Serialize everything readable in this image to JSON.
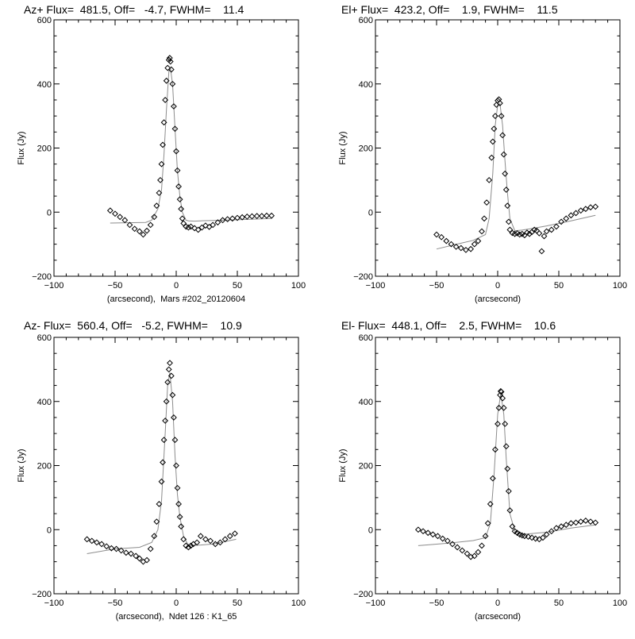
{
  "figure": {
    "background": "#ffffff",
    "ink": "#000000",
    "fit_color": "#8c8c8c"
  },
  "chart_data": [
    {
      "type": "scatter",
      "panel": "top-left",
      "title": "Az+ Flux=  481.5, Off=   -4.7, FWHM=    11.4",
      "xlabel": "(arcsecond),  Mars #202_20120604",
      "ylabel": "Flux (Jy)",
      "xlim": [
        -100,
        100
      ],
      "ylim": [
        -200,
        600
      ],
      "xticks": [
        -100,
        -50,
        0,
        50,
        100
      ],
      "yticks": [
        -200,
        0,
        200,
        400,
        600
      ],
      "grid": false,
      "peak": {
        "center": -4.7,
        "amp": 481.5,
        "fwhm": 11.4
      },
      "series": [
        {
          "name": "data",
          "marker": "diamond",
          "x": [
            -54,
            -50,
            -46,
            -42,
            -38,
            -34,
            -30,
            -27,
            -24,
            -21,
            -18,
            -16,
            -14,
            -13,
            -12,
            -11,
            -10,
            -9,
            -8,
            -7,
            -6,
            -5.3,
            -4.7,
            -4,
            -3,
            -2,
            -1,
            0,
            1,
            2,
            3,
            4,
            5,
            6,
            8,
            10,
            12,
            15,
            18,
            21,
            24,
            27,
            30,
            34,
            38,
            42,
            46,
            50,
            54,
            58,
            62,
            66,
            70,
            74,
            78
          ],
          "y": [
            5,
            -5,
            -15,
            -25,
            -40,
            -52,
            -60,
            -70,
            -58,
            -40,
            -15,
            20,
            60,
            100,
            150,
            210,
            280,
            350,
            410,
            450,
            475,
            481,
            470,
            445,
            400,
            330,
            260,
            190,
            130,
            80,
            40,
            10,
            -20,
            -35,
            -45,
            -48,
            -45,
            -50,
            -55,
            -48,
            -42,
            -46,
            -40,
            -32,
            -25,
            -22,
            -20,
            -18,
            -16,
            -14,
            -13,
            -12,
            -12,
            -11,
            -11
          ]
        },
        {
          "name": "fit",
          "marker": "line",
          "x": [
            -54,
            -40,
            -25,
            -20,
            -15,
            -12,
            -10,
            -8,
            -6,
            -4.7,
            -3,
            -1,
            1,
            3,
            5,
            8,
            10,
            15,
            20,
            30,
            50,
            78
          ],
          "y": [
            -34,
            -33,
            -32,
            -25,
            10,
            70,
            180,
            320,
            440,
            448,
            400,
            260,
            130,
            50,
            0,
            -25,
            -27,
            -28,
            -27,
            -26,
            -24,
            -20
          ]
        }
      ]
    },
    {
      "type": "scatter",
      "panel": "top-right",
      "title": "El+ Flux=  423.2, Off=    1.9, FWHM=    11.5",
      "xlabel": "(arcsecond)",
      "ylabel": "Flux (Jy)",
      "xlim": [
        -100,
        100
      ],
      "ylim": [
        -200,
        600
      ],
      "xticks": [
        -100,
        -50,
        0,
        50,
        100
      ],
      "yticks": [
        -200,
        0,
        200,
        400,
        600
      ],
      "grid": false,
      "peak": {
        "center": 1.9,
        "amp": 423.2,
        "fwhm": 11.5
      },
      "series": [
        {
          "name": "data",
          "marker": "diamond",
          "x": [
            -50,
            -46,
            -42,
            -38,
            -34,
            -30,
            -26,
            -22,
            -19,
            -16,
            -13,
            -11,
            -9,
            -7,
            -5,
            -4,
            -3,
            -2,
            -1,
            0,
            1,
            1.9,
            3,
            4,
            5,
            6,
            7,
            8,
            9,
            10,
            12,
            14,
            16,
            18,
            20,
            22,
            24,
            26,
            28,
            30,
            32,
            34,
            36,
            38,
            40,
            44,
            48,
            52,
            56,
            60,
            64,
            68,
            72,
            76,
            80
          ],
          "y": [
            -70,
            -78,
            -90,
            -100,
            -108,
            -112,
            -118,
            -115,
            -100,
            -90,
            -60,
            -20,
            30,
            100,
            170,
            220,
            260,
            300,
            335,
            348,
            352,
            340,
            300,
            240,
            180,
            120,
            70,
            20,
            -30,
            -55,
            -65,
            -68,
            -66,
            -70,
            -68,
            -72,
            -64,
            -68,
            -62,
            -55,
            -58,
            -66,
            -122,
            -75,
            -60,
            -55,
            -45,
            -30,
            -20,
            -10,
            -3,
            5,
            10,
            15,
            17
          ]
        },
        {
          "name": "fit",
          "marker": "line",
          "x": [
            -50,
            -30,
            -20,
            -10,
            -7,
            -4,
            -2,
            0,
            1.9,
            4,
            6,
            8,
            10,
            14,
            20,
            30,
            40,
            60,
            80
          ],
          "y": [
            -115,
            -97,
            -88,
            -70,
            -20,
            120,
            270,
            335,
            338,
            270,
            160,
            60,
            -20,
            -58,
            -56,
            -50,
            -43,
            -27,
            -10
          ]
        }
      ]
    },
    {
      "type": "scatter",
      "panel": "bottom-left",
      "title": "Az- Flux=  560.4, Off=   -5.2, FWHM=    10.9",
      "xlabel": "(arcsecond),  Ndet 126 : K1_65",
      "ylabel": "Flux (Jy)",
      "xlim": [
        -100,
        100
      ],
      "ylim": [
        -200,
        600
      ],
      "xticks": [
        -100,
        -50,
        0,
        50,
        100
      ],
      "yticks": [
        -200,
        0,
        200,
        400,
        600
      ],
      "grid": false,
      "peak": {
        "center": -5.2,
        "amp": 560.4,
        "fwhm": 10.9
      },
      "series": [
        {
          "name": "data",
          "marker": "diamond",
          "x": [
            -73,
            -69,
            -65,
            -61,
            -57,
            -53,
            -49,
            -45,
            -41,
            -37,
            -33,
            -30,
            -27,
            -24,
            -21,
            -18,
            -16,
            -14,
            -12,
            -11,
            -10,
            -9,
            -8,
            -7,
            -6,
            -5.2,
            -4,
            -3,
            -2,
            -1,
            0,
            1,
            2,
            3,
            4,
            6,
            8,
            10,
            12,
            14,
            17,
            20,
            24,
            28,
            32,
            36,
            40,
            44,
            48
          ],
          "y": [
            -30,
            -35,
            -40,
            -45,
            -52,
            -58,
            -60,
            -65,
            -72,
            -75,
            -82,
            -90,
            -100,
            -95,
            -60,
            -20,
            25,
            80,
            150,
            210,
            280,
            340,
            400,
            460,
            500,
            520,
            480,
            420,
            350,
            280,
            200,
            130,
            80,
            40,
            10,
            -30,
            -50,
            -55,
            -50,
            -45,
            -40,
            -20,
            -30,
            -35,
            -45,
            -40,
            -30,
            -20,
            -12
          ]
        },
        {
          "name": "fit",
          "marker": "line",
          "x": [
            -73,
            -50,
            -30,
            -20,
            -15,
            -12,
            -9,
            -7,
            -5.2,
            -3,
            -1,
            1,
            3,
            6,
            10,
            20,
            30,
            49
          ],
          "y": [
            -75,
            -60,
            -55,
            -40,
            0,
            90,
            300,
            450,
            490,
            400,
            230,
            110,
            40,
            -20,
            -50,
            -48,
            -45,
            -30
          ]
        }
      ]
    },
    {
      "type": "scatter",
      "panel": "bottom-right",
      "title": "El- Flux=  448.1, Off=    2.5, FWHM=    10.6",
      "xlabel": "(arcsecond)",
      "ylabel": "Flux (Jy)",
      "xlim": [
        -100,
        100
      ],
      "ylim": [
        -200,
        600
      ],
      "xticks": [
        -100,
        -50,
        0,
        50,
        100
      ],
      "yticks": [
        -200,
        0,
        200,
        400,
        600
      ],
      "grid": false,
      "peak": {
        "center": 2.5,
        "amp": 448.1,
        "fwhm": 10.6
      },
      "series": [
        {
          "name": "data",
          "marker": "diamond",
          "x": [
            -65,
            -61,
            -57,
            -53,
            -49,
            -45,
            -41,
            -37,
            -33,
            -29,
            -25,
            -22,
            -19,
            -16,
            -13,
            -10,
            -8,
            -6,
            -4,
            -2,
            0,
            1,
            2,
            2.5,
            3,
            4,
            5,
            6,
            7,
            8,
            9,
            10,
            12,
            14,
            16,
            18,
            20,
            22,
            25,
            28,
            31,
            34,
            37,
            40,
            44,
            48,
            52,
            56,
            60,
            64,
            68,
            72,
            76,
            80
          ],
          "y": [
            0,
            -5,
            -10,
            -15,
            -20,
            -28,
            -35,
            -45,
            -55,
            -65,
            -75,
            -85,
            -82,
            -70,
            -50,
            -20,
            20,
            80,
            160,
            250,
            330,
            380,
            420,
            432,
            430,
            410,
            380,
            330,
            260,
            190,
            120,
            60,
            10,
            -5,
            -10,
            -15,
            -18,
            -20,
            -22,
            -25,
            -28,
            -30,
            -25,
            -15,
            -5,
            5,
            10,
            15,
            20,
            22,
            25,
            28,
            25,
            22
          ]
        },
        {
          "name": "fit",
          "marker": "line",
          "x": [
            -65,
            -40,
            -20,
            -10,
            -6,
            -3,
            0,
            2.5,
            5,
            7,
            10,
            14,
            20,
            40,
            60,
            80
          ],
          "y": [
            -50,
            -42,
            -34,
            -25,
            20,
            170,
            360,
            425,
            360,
            220,
            50,
            -5,
            -15,
            -8,
            5,
            15
          ]
        }
      ]
    }
  ]
}
